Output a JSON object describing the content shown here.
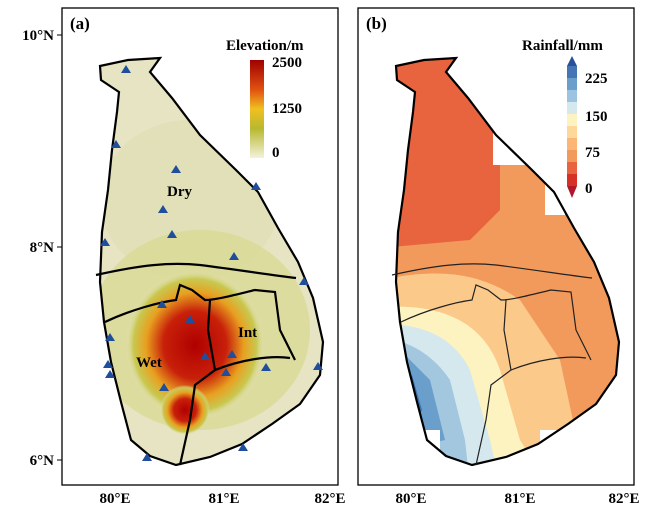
{
  "panels": [
    {
      "label": "(a)",
      "legend": {
        "title": "Elevation/m",
        "ticks": [
          2500,
          1250,
          0
        ]
      },
      "regions": [
        "Dry",
        "Int",
        "Wet"
      ]
    },
    {
      "label": "(b)",
      "legend": {
        "title": "Rainfall/mm",
        "ticks": [
          225,
          150,
          75,
          0
        ]
      }
    }
  ],
  "axes": {
    "lat_labels": [
      "10°N",
      "8°N",
      "6°N"
    ],
    "lon_labels": [
      "80°E",
      "81°E",
      "82°E"
    ]
  }
}
